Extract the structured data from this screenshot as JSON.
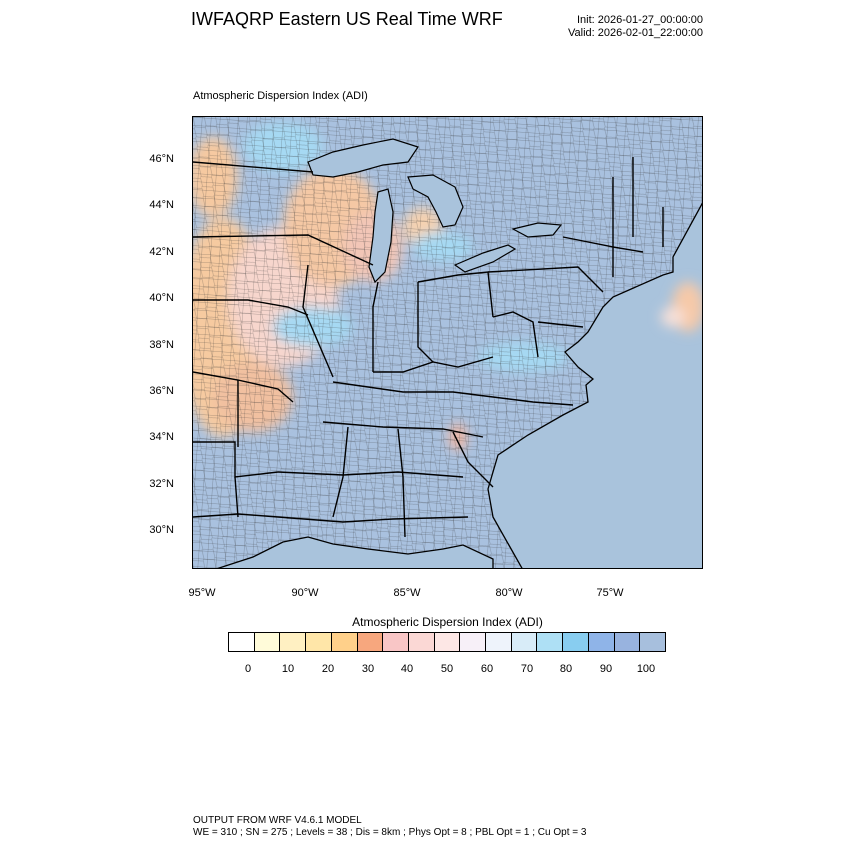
{
  "header": {
    "title": "IWFAQRP Eastern US Real Time WRF",
    "init": "Init: 2026-01-27_00:00:00",
    "valid": "Valid: 2026-02-01_22:00:00"
  },
  "plot": {
    "label": "Atmospheric Dispersion Index   (ADI)",
    "lat_ticks": [
      "46°N",
      "44°N",
      "42°N",
      "40°N",
      "38°N",
      "36°N",
      "34°N",
      "32°N",
      "30°N"
    ],
    "lon_ticks": [
      "95°W",
      "90°W",
      "85°W",
      "80°W",
      "75°W"
    ]
  },
  "colorbar": {
    "title": "Atmospheric Dispersion Index  (ADI)",
    "labels": [
      "0",
      "10",
      "20",
      "30",
      "40",
      "50",
      "60",
      "70",
      "80",
      "90",
      "100"
    ],
    "colors": [
      "#ffffff",
      "#fffbd9",
      "#fff0c2",
      "#ffe6a8",
      "#ffd08a",
      "#f7a77e",
      "#f9c6c6",
      "#fbd8d5",
      "#fde7e5",
      "#f7f0f8",
      "#eef3fb",
      "#d8ecf8",
      "#aee0f5",
      "#88cdf0",
      "#8fb4e8",
      "#98b3df",
      "#a7bfdd"
    ]
  },
  "footer": {
    "line1": "OUTPUT FROM WRF V4.6.1 MODEL",
    "line2": "WE = 310 ; SN = 275 ; Levels = 38 ; Dis = 8km ; Phys Opt = 8 ; PBL Opt = 1 ; Cu Opt = 3"
  },
  "map_colors": {
    "ocean": "#a9c3dc",
    "low": "#f7c79a",
    "mid": "#f6d8d6",
    "high": "#a3bfe0",
    "cyan": "#a6d9f3"
  }
}
